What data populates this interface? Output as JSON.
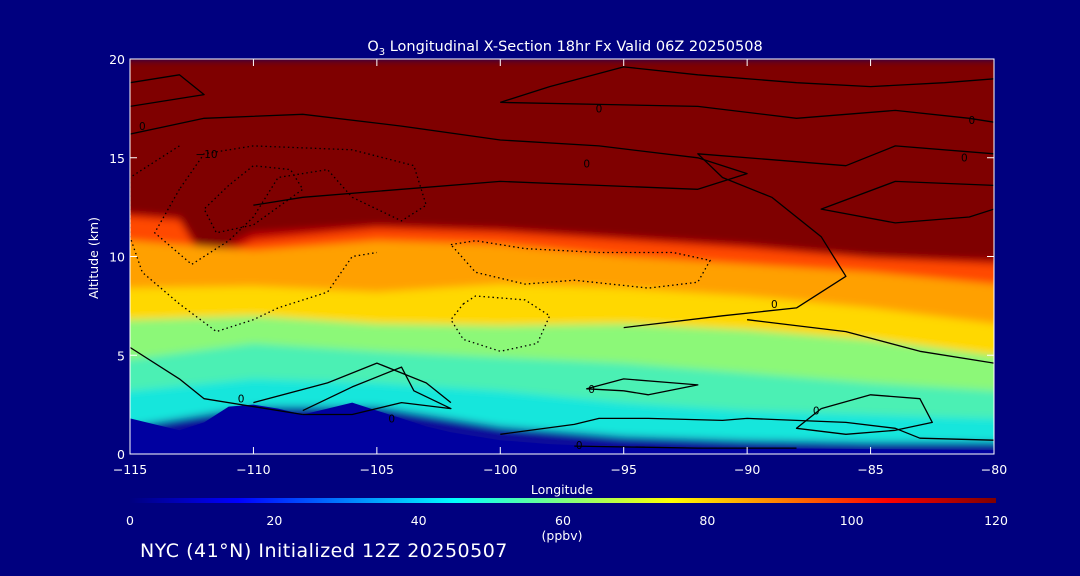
{
  "chart_data": {
    "type": "heatmap",
    "title_species": "O",
    "title_subscript": "3",
    "title_rest": " Longitudinal X-Section 18hr  Fx Valid 06Z 20250508",
    "xlabel": "Longitude",
    "ylabel": "Altitude (km)",
    "xlim": [
      -115,
      -80
    ],
    "ylim": [
      0,
      20
    ],
    "xticks": [
      -115,
      -110,
      -105,
      -100,
      -95,
      -90,
      -85,
      -80
    ],
    "xtick_labels": [
      "−115",
      "−110",
      "−105",
      "−100",
      "−95",
      "−90",
      "−85",
      "−80"
    ],
    "yticks": [
      0,
      5,
      10,
      15,
      20
    ],
    "ytick_labels": [
      "0",
      "5",
      "10",
      "15",
      "20"
    ],
    "colorbar": {
      "ticks": [
        0,
        20,
        40,
        60,
        80,
        100,
        120
      ],
      "tick_labels": [
        "0",
        "20",
        "40",
        "60",
        "80",
        "100",
        "120"
      ],
      "unit": "(ppbv)",
      "range": [
        0,
        120
      ],
      "colors": [
        "#00007f",
        "#0000ff",
        "#0080ff",
        "#00ffff",
        "#7fff7f",
        "#ffff00",
        "#ff8000",
        "#ff0000",
        "#7f0000"
      ]
    },
    "fill_layers": [
      {
        "value": 5,
        "color": "#0a0a9a",
        "top_km": [
          [
            -115,
            1.4
          ],
          [
            -110,
            2.4
          ],
          [
            -105,
            2.4
          ],
          [
            -100,
            1.4
          ],
          [
            -95,
            0.9
          ],
          [
            -90,
            0.7
          ],
          [
            -85,
            0.6
          ],
          [
            -80,
            0.6
          ]
        ]
      },
      {
        "value": 42,
        "color": "#19e6dc",
        "top_km": [
          [
            -115,
            3.2
          ],
          [
            -110,
            3.8
          ],
          [
            -105,
            3.6
          ],
          [
            -100,
            3.2
          ],
          [
            -95,
            2.6
          ],
          [
            -90,
            2.2
          ],
          [
            -85,
            2.0
          ],
          [
            -80,
            1.8
          ]
        ]
      },
      {
        "value": 55,
        "color": "#4cf0b4",
        "top_km": [
          [
            -115,
            4.8
          ],
          [
            -110,
            5.6
          ],
          [
            -105,
            5.2
          ],
          [
            -100,
            4.9
          ],
          [
            -95,
            4.6
          ],
          [
            -90,
            4.1
          ],
          [
            -85,
            3.6
          ],
          [
            -80,
            3.2
          ]
        ]
      },
      {
        "value": 65,
        "color": "#8cf878",
        "top_km": [
          [
            -115,
            6.8
          ],
          [
            -110,
            7.0
          ],
          [
            -105,
            6.6
          ],
          [
            -100,
            6.5
          ],
          [
            -95,
            6.6
          ],
          [
            -90,
            6.3
          ],
          [
            -85,
            5.8
          ],
          [
            -80,
            5.0
          ]
        ]
      },
      {
        "value": 76,
        "color": "#ffd800",
        "top_km": [
          [
            -115,
            8.4
          ],
          [
            -110,
            8.5
          ],
          [
            -105,
            8.2
          ],
          [
            -100,
            8.6
          ],
          [
            -95,
            8.4
          ],
          [
            -90,
            8.0
          ],
          [
            -85,
            7.4
          ],
          [
            -80,
            6.6
          ]
        ]
      },
      {
        "value": 88,
        "color": "#ffa000",
        "top_km": [
          [
            -115,
            10.8
          ],
          [
            -110,
            10.3
          ],
          [
            -105,
            10.8
          ],
          [
            -100,
            10.6
          ],
          [
            -95,
            10.0
          ],
          [
            -90,
            9.6
          ],
          [
            -85,
            9.2
          ],
          [
            -80,
            8.6
          ]
        ]
      },
      {
        "value": 102,
        "color": "#ff4a00",
        "top_km": [
          [
            -115,
            12.0
          ],
          [
            -113,
            11.8
          ],
          [
            -112,
            9.6
          ],
          [
            -110,
            10.8
          ],
          [
            -105,
            11.4
          ],
          [
            -100,
            11.2
          ],
          [
            -95,
            10.8
          ],
          [
            -90,
            10.4
          ],
          [
            -85,
            9.9
          ],
          [
            -80,
            9.6
          ]
        ]
      },
      {
        "value": 110,
        "color": "#c80000",
        "top_km": [
          [
            -115,
            12.2
          ],
          [
            -113,
            12.0
          ],
          [
            -112,
            10.0
          ],
          [
            -110,
            11.2
          ],
          [
            -105,
            11.6
          ],
          [
            -100,
            11.4
          ],
          [
            -95,
            11.0
          ],
          [
            -90,
            10.6
          ],
          [
            -85,
            10.0
          ],
          [
            -80,
            9.8
          ]
        ]
      },
      {
        "value": 120,
        "color": "#7f0000",
        "top_km": [
          [
            -115,
            20
          ],
          [
            -80,
            20
          ]
        ]
      }
    ],
    "terrain_top_km": [
      [
        -115,
        1.8
      ],
      [
        -114,
        1.5
      ],
      [
        -113,
        1.2
      ],
      [
        -112,
        1.6
      ],
      [
        -111,
        2.4
      ],
      [
        -110,
        2.5
      ],
      [
        -109,
        2.3
      ],
      [
        -108,
        2.0
      ],
      [
        -107,
        2.3
      ],
      [
        -106,
        2.6
      ],
      [
        -105,
        2.2
      ],
      [
        -104,
        1.8
      ],
      [
        -103,
        1.4
      ],
      [
        -102,
        1.1
      ],
      [
        -101,
        0.9
      ],
      [
        -100,
        0.7
      ],
      [
        -98,
        0.5
      ],
      [
        -96,
        0.4
      ],
      [
        -94,
        0.35
      ],
      [
        -90,
        0.3
      ],
      [
        -85,
        0.25
      ],
      [
        -80,
        0.2
      ]
    ],
    "contours_solid": [
      [
        [
          -115,
          18.8
        ],
        [
          -113,
          19.2
        ],
        [
          -112,
          18.2
        ],
        [
          -115,
          17.6
        ]
      ],
      [
        [
          -115,
          16.2
        ],
        [
          -112,
          17.0
        ],
        [
          -108,
          17.2
        ],
        [
          -104,
          16.6
        ],
        [
          -100,
          15.9
        ],
        [
          -96,
          15.6
        ],
        [
          -92,
          15.0
        ],
        [
          -90,
          14.2
        ],
        [
          -92,
          13.4
        ],
        [
          -96,
          13.6
        ],
        [
          -100,
          13.8
        ],
        [
          -104,
          13.4
        ],
        [
          -108,
          13.0
        ],
        [
          -110,
          12.6
        ]
      ],
      [
        [
          -100,
          17.8
        ],
        [
          -98,
          18.6
        ],
        [
          -95,
          19.6
        ],
        [
          -92,
          19.2
        ],
        [
          -88,
          18.8
        ],
        [
          -85,
          18.6
        ],
        [
          -82,
          18.8
        ],
        [
          -80,
          19.0
        ]
      ],
      [
        [
          -100,
          17.8
        ],
        [
          -96,
          17.7
        ],
        [
          -92,
          17.6
        ],
        [
          -88,
          17.0
        ],
        [
          -84,
          17.4
        ],
        [
          -81,
          17.0
        ],
        [
          -80,
          16.8
        ]
      ],
      [
        [
          -80,
          15.2
        ],
        [
          -84,
          15.6
        ],
        [
          -86,
          14.6
        ],
        [
          -89,
          14.9
        ],
        [
          -92,
          15.2
        ],
        [
          -91,
          14.0
        ],
        [
          -89,
          13.0
        ],
        [
          -88,
          12.0
        ],
        [
          -87,
          11.0
        ],
        [
          -86.5,
          10.0
        ],
        [
          -86,
          9.0
        ],
        [
          -88,
          7.4
        ],
        [
          -91,
          7.0
        ],
        [
          -95,
          6.4
        ]
      ],
      [
        [
          -80,
          13.6
        ],
        [
          -84,
          13.8
        ],
        [
          -87,
          12.4
        ],
        [
          -84,
          11.7
        ],
        [
          -81,
          12.0
        ],
        [
          -80,
          12.4
        ]
      ],
      [
        [
          -115,
          5.4
        ],
        [
          -113,
          3.8
        ],
        [
          -112,
          2.8
        ],
        [
          -110,
          2.4
        ],
        [
          -108,
          2.0
        ]
      ],
      [
        [
          -108,
          2.2
        ],
        [
          -106,
          3.4
        ],
        [
          -104,
          4.4
        ],
        [
          -103.5,
          3.2
        ],
        [
          -102,
          2.3
        ],
        [
          -104,
          2.6
        ],
        [
          -106,
          2.0
        ],
        [
          -108,
          2.0
        ]
      ],
      [
        [
          -110,
          2.6
        ],
        [
          -107,
          3.6
        ],
        [
          -105,
          4.6
        ],
        [
          -103,
          3.6
        ],
        [
          -102,
          2.6
        ]
      ],
      [
        [
          -100,
          1.0
        ],
        [
          -97,
          1.5
        ],
        [
          -96,
          1.8
        ],
        [
          -94,
          1.8
        ],
        [
          -91,
          1.7
        ],
        [
          -90,
          1.8
        ],
        [
          -86,
          1.6
        ],
        [
          -84,
          1.3
        ],
        [
          -83,
          0.8
        ],
        [
          -80,
          0.7
        ]
      ],
      [
        [
          -95,
          3.2
        ],
        [
          -96.5,
          3.3
        ],
        [
          -95,
          3.8
        ],
        [
          -93,
          3.6
        ],
        [
          -92,
          3.5
        ],
        [
          -94,
          3.0
        ],
        [
          -95,
          3.2
        ]
      ],
      [
        [
          -87,
          2.3
        ],
        [
          -85,
          3.0
        ],
        [
          -83,
          2.8
        ],
        [
          -82.5,
          1.6
        ],
        [
          -84,
          1.2
        ],
        [
          -86,
          1.0
        ],
        [
          -88,
          1.3
        ],
        [
          -87,
          2.3
        ]
      ],
      [
        [
          -80,
          4.6
        ],
        [
          -83,
          5.2
        ],
        [
          -86,
          6.2
        ],
        [
          -90,
          6.8
        ]
      ],
      [
        [
          -97,
          0.4
        ],
        [
          -92,
          0.3
        ],
        [
          -88,
          0.3
        ]
      ]
    ],
    "contours_dotted": [
      [
        [
          -113,
          13.4
        ],
        [
          -114,
          11.2
        ],
        [
          -112.5,
          9.6
        ],
        [
          -111,
          10.8
        ],
        [
          -110,
          12.0
        ],
        [
          -109,
          14.0
        ],
        [
          -107,
          14.4
        ],
        [
          -106,
          13.0
        ],
        [
          -104,
          11.8
        ],
        [
          -103,
          12.6
        ],
        [
          -103.5,
          14.6
        ],
        [
          -106,
          15.4
        ],
        [
          -110,
          15.6
        ],
        [
          -112,
          15.2
        ],
        [
          -113,
          13.4
        ]
      ],
      [
        [
          -111,
          13.6
        ],
        [
          -112,
          12.4
        ],
        [
          -111.5,
          11.2
        ],
        [
          -110,
          11.6
        ],
        [
          -108,
          13.4
        ],
        [
          -108.5,
          14.4
        ],
        [
          -110,
          14.6
        ],
        [
          -111,
          13.6
        ]
      ],
      [
        [
          -113,
          15.6
        ],
        [
          -115,
          14.0
        ],
        [
          -115,
          11.0
        ],
        [
          -114.5,
          9.2
        ],
        [
          -113,
          7.6
        ],
        [
          -111.5,
          6.2
        ],
        [
          -110,
          6.8
        ],
        [
          -109,
          7.4
        ],
        [
          -107,
          8.2
        ],
        [
          -106,
          10.0
        ],
        [
          -105,
          10.2
        ]
      ],
      [
        [
          -102,
          10.6
        ],
        [
          -101,
          10.8
        ],
        [
          -99,
          10.4
        ],
        [
          -96,
          10.2
        ],
        [
          -93,
          10.2
        ],
        [
          -91.5,
          9.8
        ],
        [
          -92,
          8.7
        ],
        [
          -94,
          8.4
        ],
        [
          -97,
          8.8
        ],
        [
          -99,
          8.6
        ],
        [
          -101,
          9.2
        ],
        [
          -102,
          10.6
        ]
      ],
      [
        [
          -101.5,
          7.6
        ],
        [
          -101,
          8.0
        ],
        [
          -99,
          7.8
        ],
        [
          -98,
          7.0
        ],
        [
          -98.5,
          5.6
        ],
        [
          -100,
          5.2
        ],
        [
          -101.5,
          5.8
        ],
        [
          -102,
          6.8
        ],
        [
          -101.5,
          7.6
        ]
      ]
    ],
    "contour_labels": [
      {
        "x": -114.5,
        "y": 16.4,
        "text": "0"
      },
      {
        "x": -111.9,
        "y": 15.0,
        "text": "−10"
      },
      {
        "x": -96,
        "y": 17.3,
        "text": "0"
      },
      {
        "x": -96.5,
        "y": 14.5,
        "text": "0"
      },
      {
        "x": -80.9,
        "y": 16.7,
        "text": "0"
      },
      {
        "x": -81.2,
        "y": 14.8,
        "text": "0"
      },
      {
        "x": -88.9,
        "y": 7.4,
        "text": "0"
      },
      {
        "x": -110.5,
        "y": 2.6,
        "text": "0"
      },
      {
        "x": -104.4,
        "y": 1.6,
        "text": "0"
      },
      {
        "x": -96.3,
        "y": 3.1,
        "text": "0"
      },
      {
        "x": -87.2,
        "y": 2.0,
        "text": "0"
      },
      {
        "x": -96.8,
        "y": 0.25,
        "text": "0"
      }
    ]
  },
  "footer": "NYC (41°N) Initialized 12Z 20250507"
}
